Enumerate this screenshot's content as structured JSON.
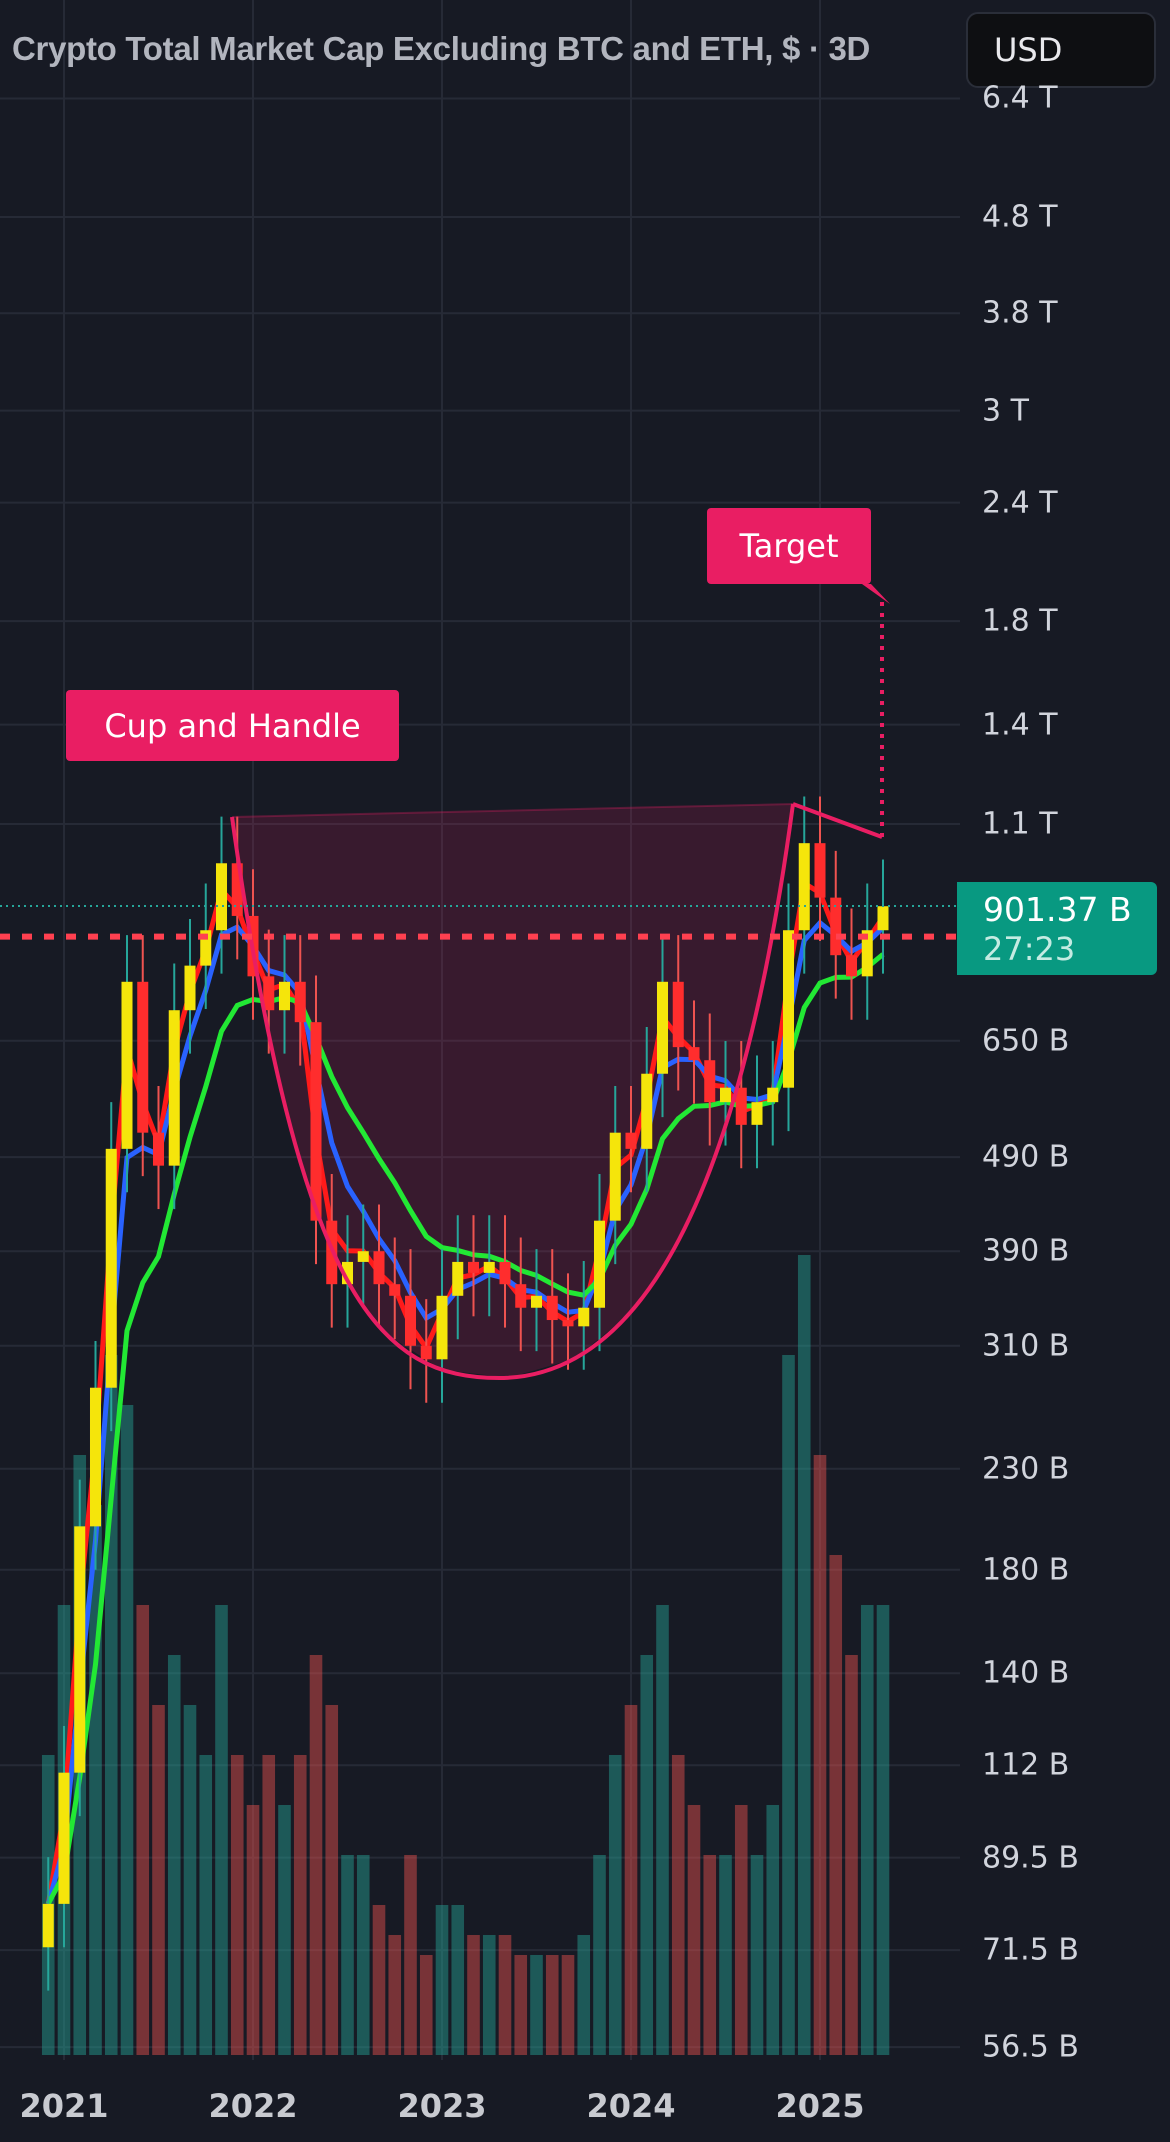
{
  "header": {
    "title": "Crypto Total Market Cap Excluding BTC and ETH, $ · 3D",
    "currency": "USD"
  },
  "price_label": {
    "price": "901.37 B",
    "countdown": "27:23",
    "color": "#089981"
  },
  "annotations": {
    "pattern_label": "Cup and Handle",
    "target_label": "Target",
    "color": "#e91e63",
    "support_line_value": 837
  },
  "chart_data": {
    "type": "candlestick",
    "title": "Crypto Total Market Cap Excluding BTC and ETH, $ · 3D",
    "y_scale": "log",
    "y_unit": "B (USD)",
    "ylim": [
      53,
      7000
    ],
    "y_ticks": [
      "6.4 T",
      "4.8 T",
      "3.8 T",
      "3 T",
      "2.4 T",
      "1.8 T",
      "1.4 T",
      "1.1 T",
      "650 B",
      "490 B",
      "390 B",
      "310 B",
      "230 B",
      "180 B",
      "140 B",
      "112 B",
      "89.5 B",
      "71.5 B",
      "56.5 B"
    ],
    "y_tick_values": [
      6400,
      4800,
      3800,
      3000,
      2400,
      1800,
      1400,
      1100,
      650,
      490,
      390,
      310,
      230,
      180,
      140,
      112,
      89.5,
      71.5,
      56.5
    ],
    "x_ticks": [
      "2021",
      "2022",
      "2023",
      "2024",
      "2025"
    ],
    "grid": true,
    "dates": [
      "2020-12",
      "2021-01",
      "2021-02",
      "2021-03",
      "2021-04",
      "2021-05",
      "2021-06",
      "2021-07",
      "2021-08",
      "2021-09",
      "2021-10",
      "2021-11",
      "2021-12",
      "2022-01",
      "2022-02",
      "2022-03",
      "2022-04",
      "2022-05",
      "2022-06",
      "2022-07",
      "2022-08",
      "2022-09",
      "2022-10",
      "2022-11",
      "2022-12",
      "2023-01",
      "2023-02",
      "2023-03",
      "2023-04",
      "2023-05",
      "2023-06",
      "2023-07",
      "2023-08",
      "2023-09",
      "2023-10",
      "2023-11",
      "2023-12",
      "2024-01",
      "2024-02",
      "2024-03",
      "2024-04",
      "2024-05",
      "2024-06",
      "2024-07",
      "2024-08",
      "2024-09",
      "2024-10",
      "2024-11",
      "2024-12",
      "2025-01",
      "2025-02",
      "2025-03",
      "2025-04",
      "2025-05"
    ],
    "close": [
      80,
      110,
      200,
      280,
      500,
      750,
      520,
      480,
      700,
      780,
      850,
      1000,
      880,
      760,
      700,
      750,
      680,
      420,
      360,
      380,
      390,
      360,
      350,
      310,
      300,
      350,
      380,
      370,
      380,
      360,
      340,
      350,
      330,
      325,
      340,
      420,
      520,
      500,
      600,
      750,
      640,
      620,
      560,
      580,
      530,
      560,
      580,
      850,
      1050,
      920,
      800,
      760,
      850,
      901
    ],
    "volume_relative": [
      0.3,
      0.45,
      0.6,
      0.55,
      0.7,
      0.65,
      0.45,
      0.35,
      0.4,
      0.35,
      0.3,
      0.45,
      0.3,
      0.25,
      0.3,
      0.25,
      0.3,
      0.4,
      0.35,
      0.2,
      0.2,
      0.15,
      0.12,
      0.2,
      0.1,
      0.15,
      0.15,
      0.12,
      0.12,
      0.12,
      0.1,
      0.1,
      0.1,
      0.1,
      0.12,
      0.2,
      0.3,
      0.35,
      0.4,
      0.45,
      0.3,
      0.25,
      0.2,
      0.2,
      0.25,
      0.2,
      0.25,
      0.7,
      0.8,
      0.6,
      0.5,
      0.4,
      0.45,
      0.45
    ],
    "series": [
      {
        "kind": "moving-average-fast",
        "color": "#ff1a1a"
      },
      {
        "kind": "moving-average-mid",
        "color": "#2962ff"
      },
      {
        "kind": "moving-average-slow",
        "color": "#22e834"
      }
    ],
    "current_price": 901.37
  }
}
